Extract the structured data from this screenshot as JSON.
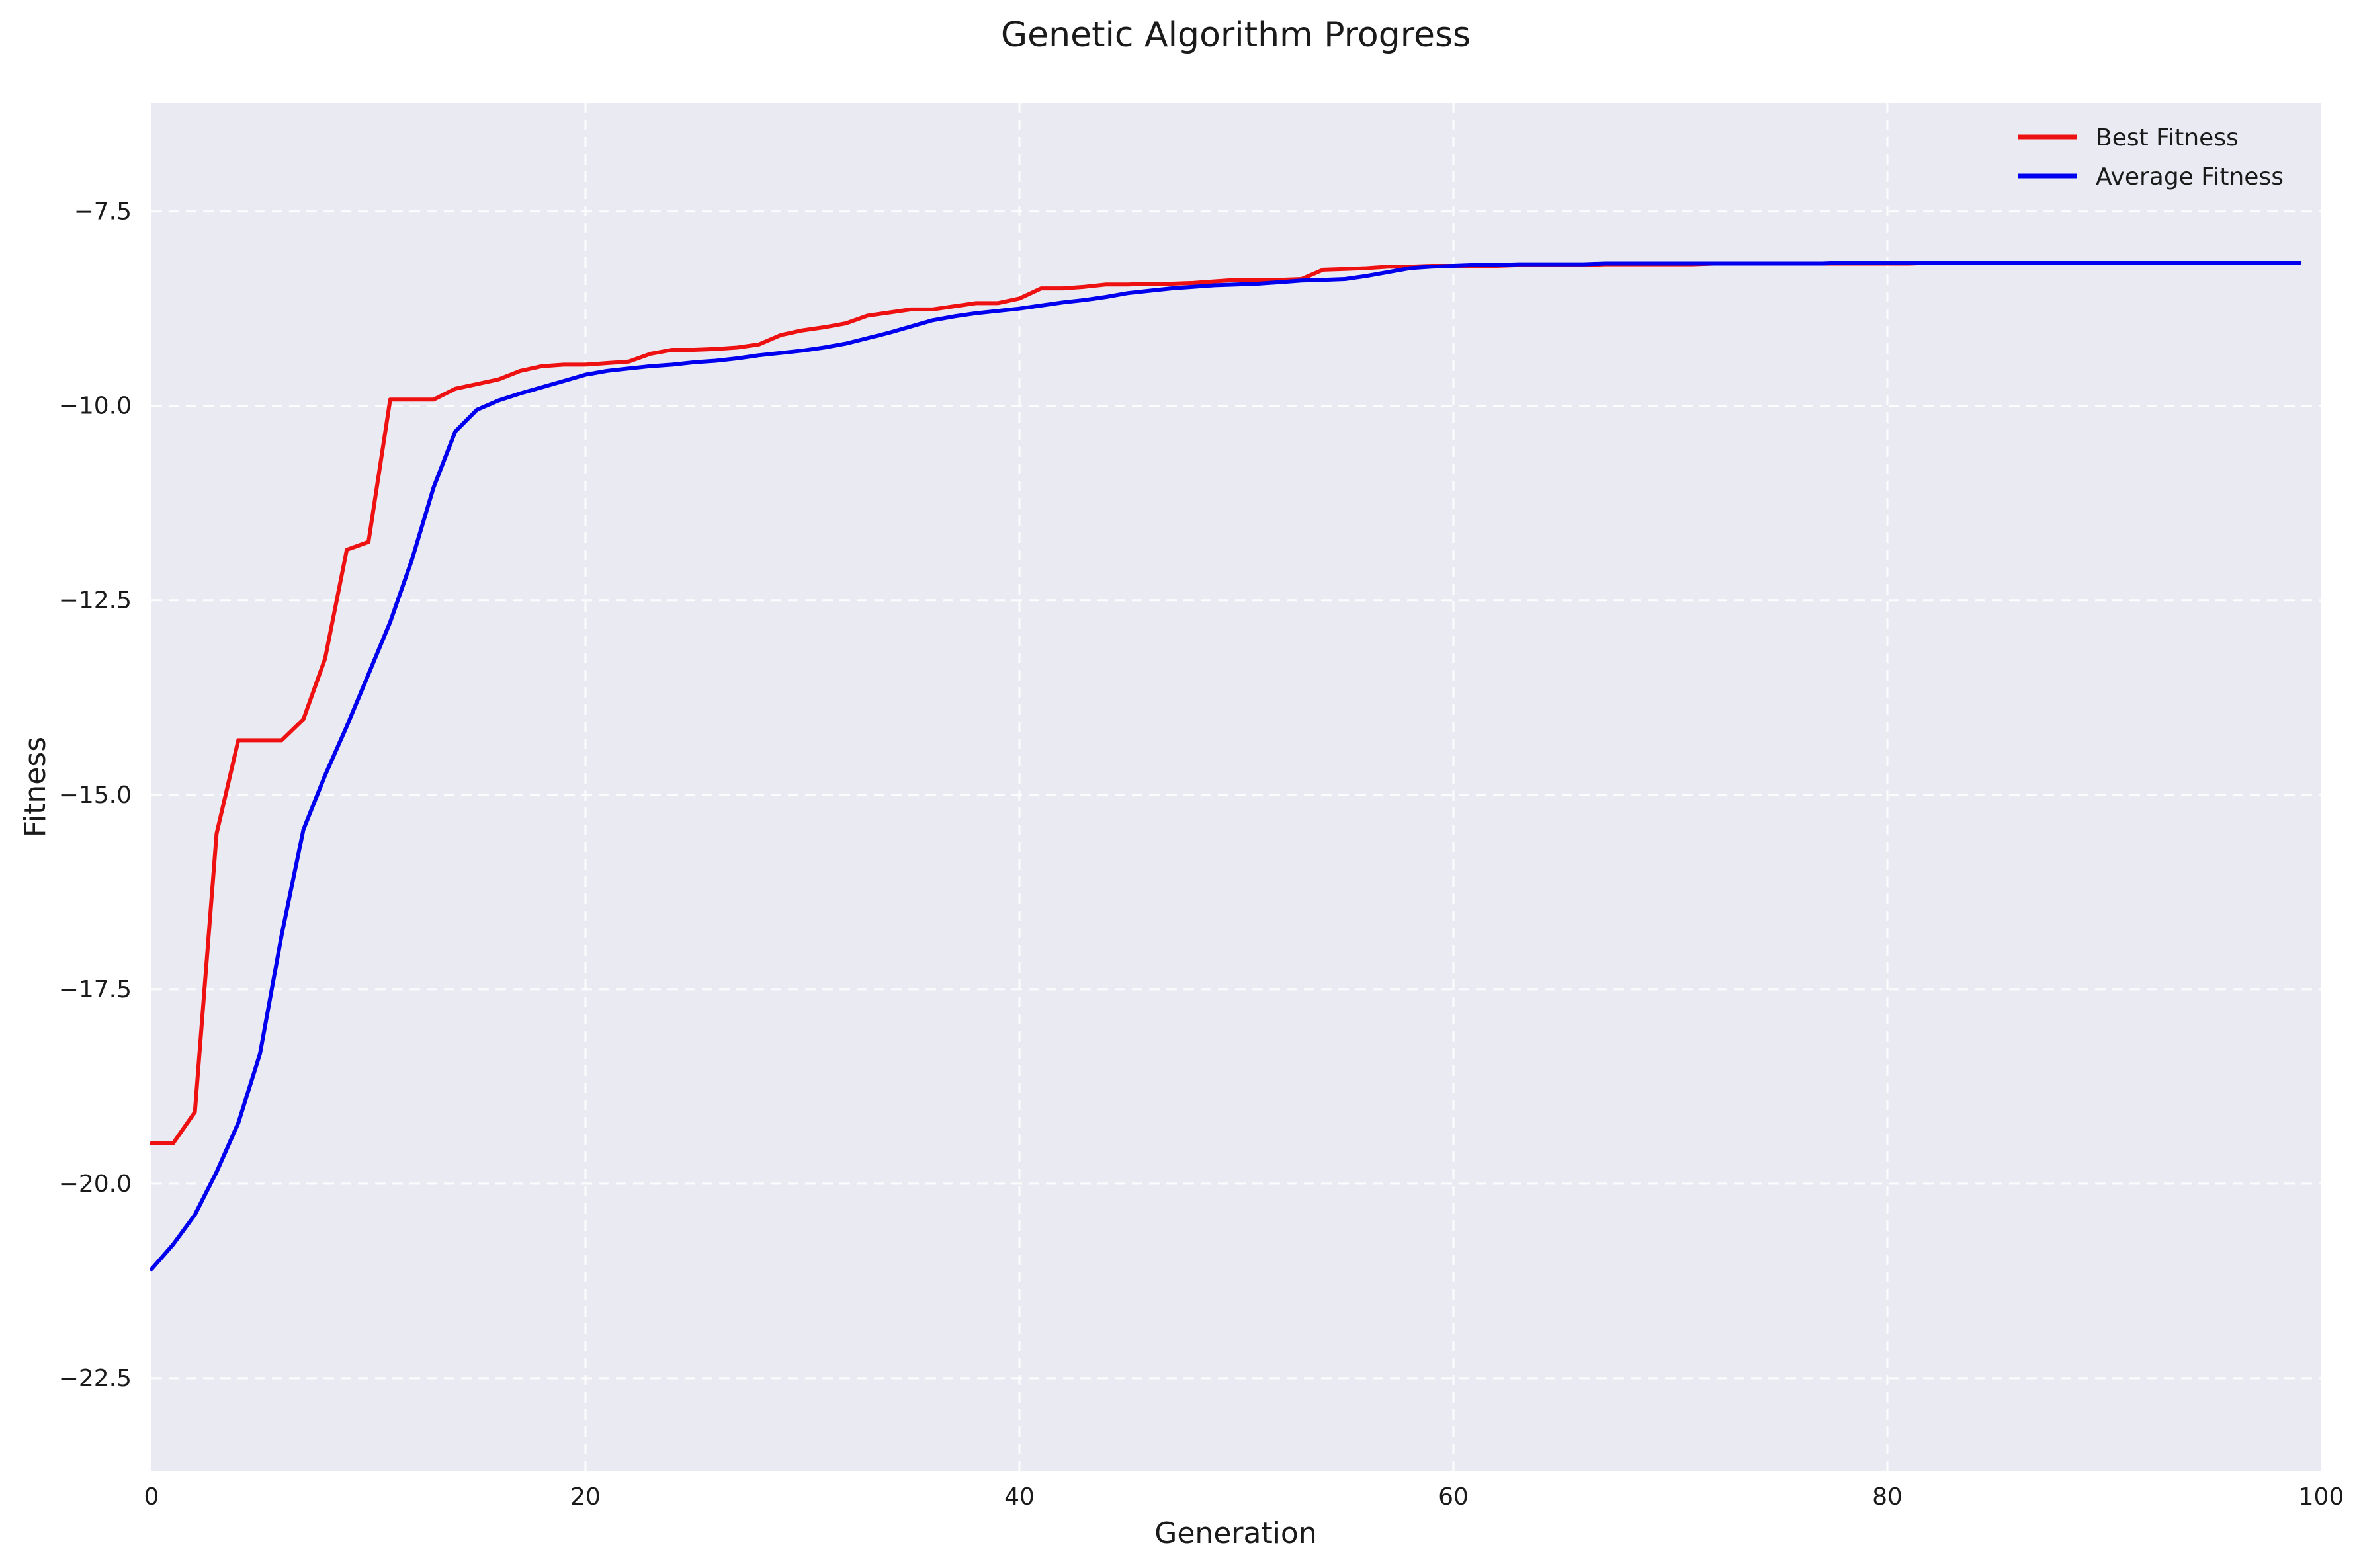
{
  "chart_data": {
    "type": "line",
    "title": "Genetic Algorithm Progress",
    "xlabel": "Generation",
    "ylabel": "Fitness",
    "xlim": [
      0,
      100
    ],
    "ylim": [
      -23.7,
      -6.1
    ],
    "xticks": [
      0,
      20,
      40,
      60,
      80,
      100
    ],
    "xtick_labels": [
      "0",
      "20",
      "40",
      "60",
      "80",
      "100"
    ],
    "yticks": [
      -22.5,
      -20.0,
      -17.5,
      -15.0,
      -12.5,
      -10.0,
      -7.5
    ],
    "ytick_labels": [
      "−22.5",
      "−20.0",
      "−17.5",
      "−15.0",
      "−12.5",
      "−10.0",
      "−7.5"
    ],
    "grid": true,
    "legend_position": "top-right",
    "background_color": "#eaeaf2",
    "x": [
      0,
      1,
      2,
      3,
      4,
      5,
      6,
      7,
      8,
      9,
      10,
      11,
      12,
      13,
      14,
      15,
      16,
      17,
      18,
      19,
      20,
      21,
      22,
      23,
      24,
      25,
      26,
      27,
      28,
      29,
      30,
      31,
      32,
      33,
      34,
      35,
      36,
      37,
      38,
      39,
      40,
      41,
      42,
      43,
      44,
      45,
      46,
      47,
      48,
      49,
      50,
      51,
      52,
      53,
      54,
      55,
      56,
      57,
      58,
      59,
      60,
      61,
      62,
      63,
      64,
      65,
      66,
      67,
      68,
      69,
      70,
      71,
      72,
      73,
      74,
      75,
      76,
      77,
      78,
      79,
      80,
      81,
      82,
      83,
      84,
      85,
      86,
      87,
      88,
      89,
      90,
      91,
      92,
      93,
      94,
      95,
      96,
      97,
      98,
      99
    ],
    "series": [
      {
        "name": "Best Fitness",
        "color": "#ee1111",
        "values": [
          -19.48,
          -19.48,
          -19.08,
          -15.5,
          -14.3,
          -14.3,
          -14.3,
          -14.03,
          -13.25,
          -11.85,
          -11.75,
          -9.92,
          -9.92,
          -9.92,
          -9.78,
          -9.72,
          -9.66,
          -9.55,
          -9.49,
          -9.47,
          -9.47,
          -9.45,
          -9.43,
          -9.33,
          -9.28,
          -9.28,
          -9.27,
          -9.25,
          -9.21,
          -9.09,
          -9.03,
          -8.99,
          -8.94,
          -8.84,
          -8.8,
          -8.76,
          -8.76,
          -8.72,
          -8.68,
          -8.68,
          -8.62,
          -8.49,
          -8.49,
          -8.47,
          -8.44,
          -8.44,
          -8.43,
          -8.43,
          -8.42,
          -8.4,
          -8.38,
          -8.38,
          -8.38,
          -8.37,
          -8.25,
          -8.24,
          -8.23,
          -8.21,
          -8.21,
          -8.2,
          -8.2,
          -8.2,
          -8.2,
          -8.19,
          -8.19,
          -8.19,
          -8.19,
          -8.18,
          -8.18,
          -8.18,
          -8.18,
          -8.18,
          -8.17,
          -8.17,
          -8.17,
          -8.17,
          -8.17,
          -8.17,
          -8.17,
          -8.17,
          -8.17,
          -8.17,
          -8.16,
          -8.16,
          -8.16,
          -8.16,
          -8.16,
          -8.16,
          -8.16,
          -8.16,
          -8.16,
          -8.16,
          -8.16,
          -8.16,
          -8.16,
          -8.16,
          -8.16,
          -8.16,
          -8.16,
          -8.16
        ]
      },
      {
        "name": "Average Fitness",
        "color": "#0000ee",
        "values": [
          -21.1,
          -20.78,
          -20.4,
          -19.85,
          -19.22,
          -18.33,
          -16.8,
          -15.45,
          -14.75,
          -14.12,
          -13.45,
          -12.78,
          -11.98,
          -11.05,
          -10.33,
          -10.05,
          -9.93,
          -9.84,
          -9.76,
          -9.68,
          -9.6,
          -9.55,
          -9.52,
          -9.49,
          -9.47,
          -9.44,
          -9.42,
          -9.39,
          -9.35,
          -9.32,
          -9.29,
          -9.25,
          -9.2,
          -9.13,
          -9.06,
          -8.98,
          -8.9,
          -8.85,
          -8.81,
          -8.78,
          -8.75,
          -8.71,
          -8.67,
          -8.64,
          -8.6,
          -8.55,
          -8.52,
          -8.49,
          -8.47,
          -8.45,
          -8.44,
          -8.43,
          -8.41,
          -8.39,
          -8.38,
          -8.37,
          -8.33,
          -8.28,
          -8.23,
          -8.21,
          -8.2,
          -8.19,
          -8.19,
          -8.18,
          -8.18,
          -8.18,
          -8.18,
          -8.17,
          -8.17,
          -8.17,
          -8.17,
          -8.17,
          -8.17,
          -8.17,
          -8.17,
          -8.17,
          -8.17,
          -8.17,
          -8.16,
          -8.16,
          -8.16,
          -8.16,
          -8.16,
          -8.16,
          -8.16,
          -8.16,
          -8.16,
          -8.16,
          -8.16,
          -8.16,
          -8.16,
          -8.16,
          -8.16,
          -8.16,
          -8.16,
          -8.16,
          -8.16,
          -8.16,
          -8.16,
          -8.16
        ]
      }
    ]
  }
}
